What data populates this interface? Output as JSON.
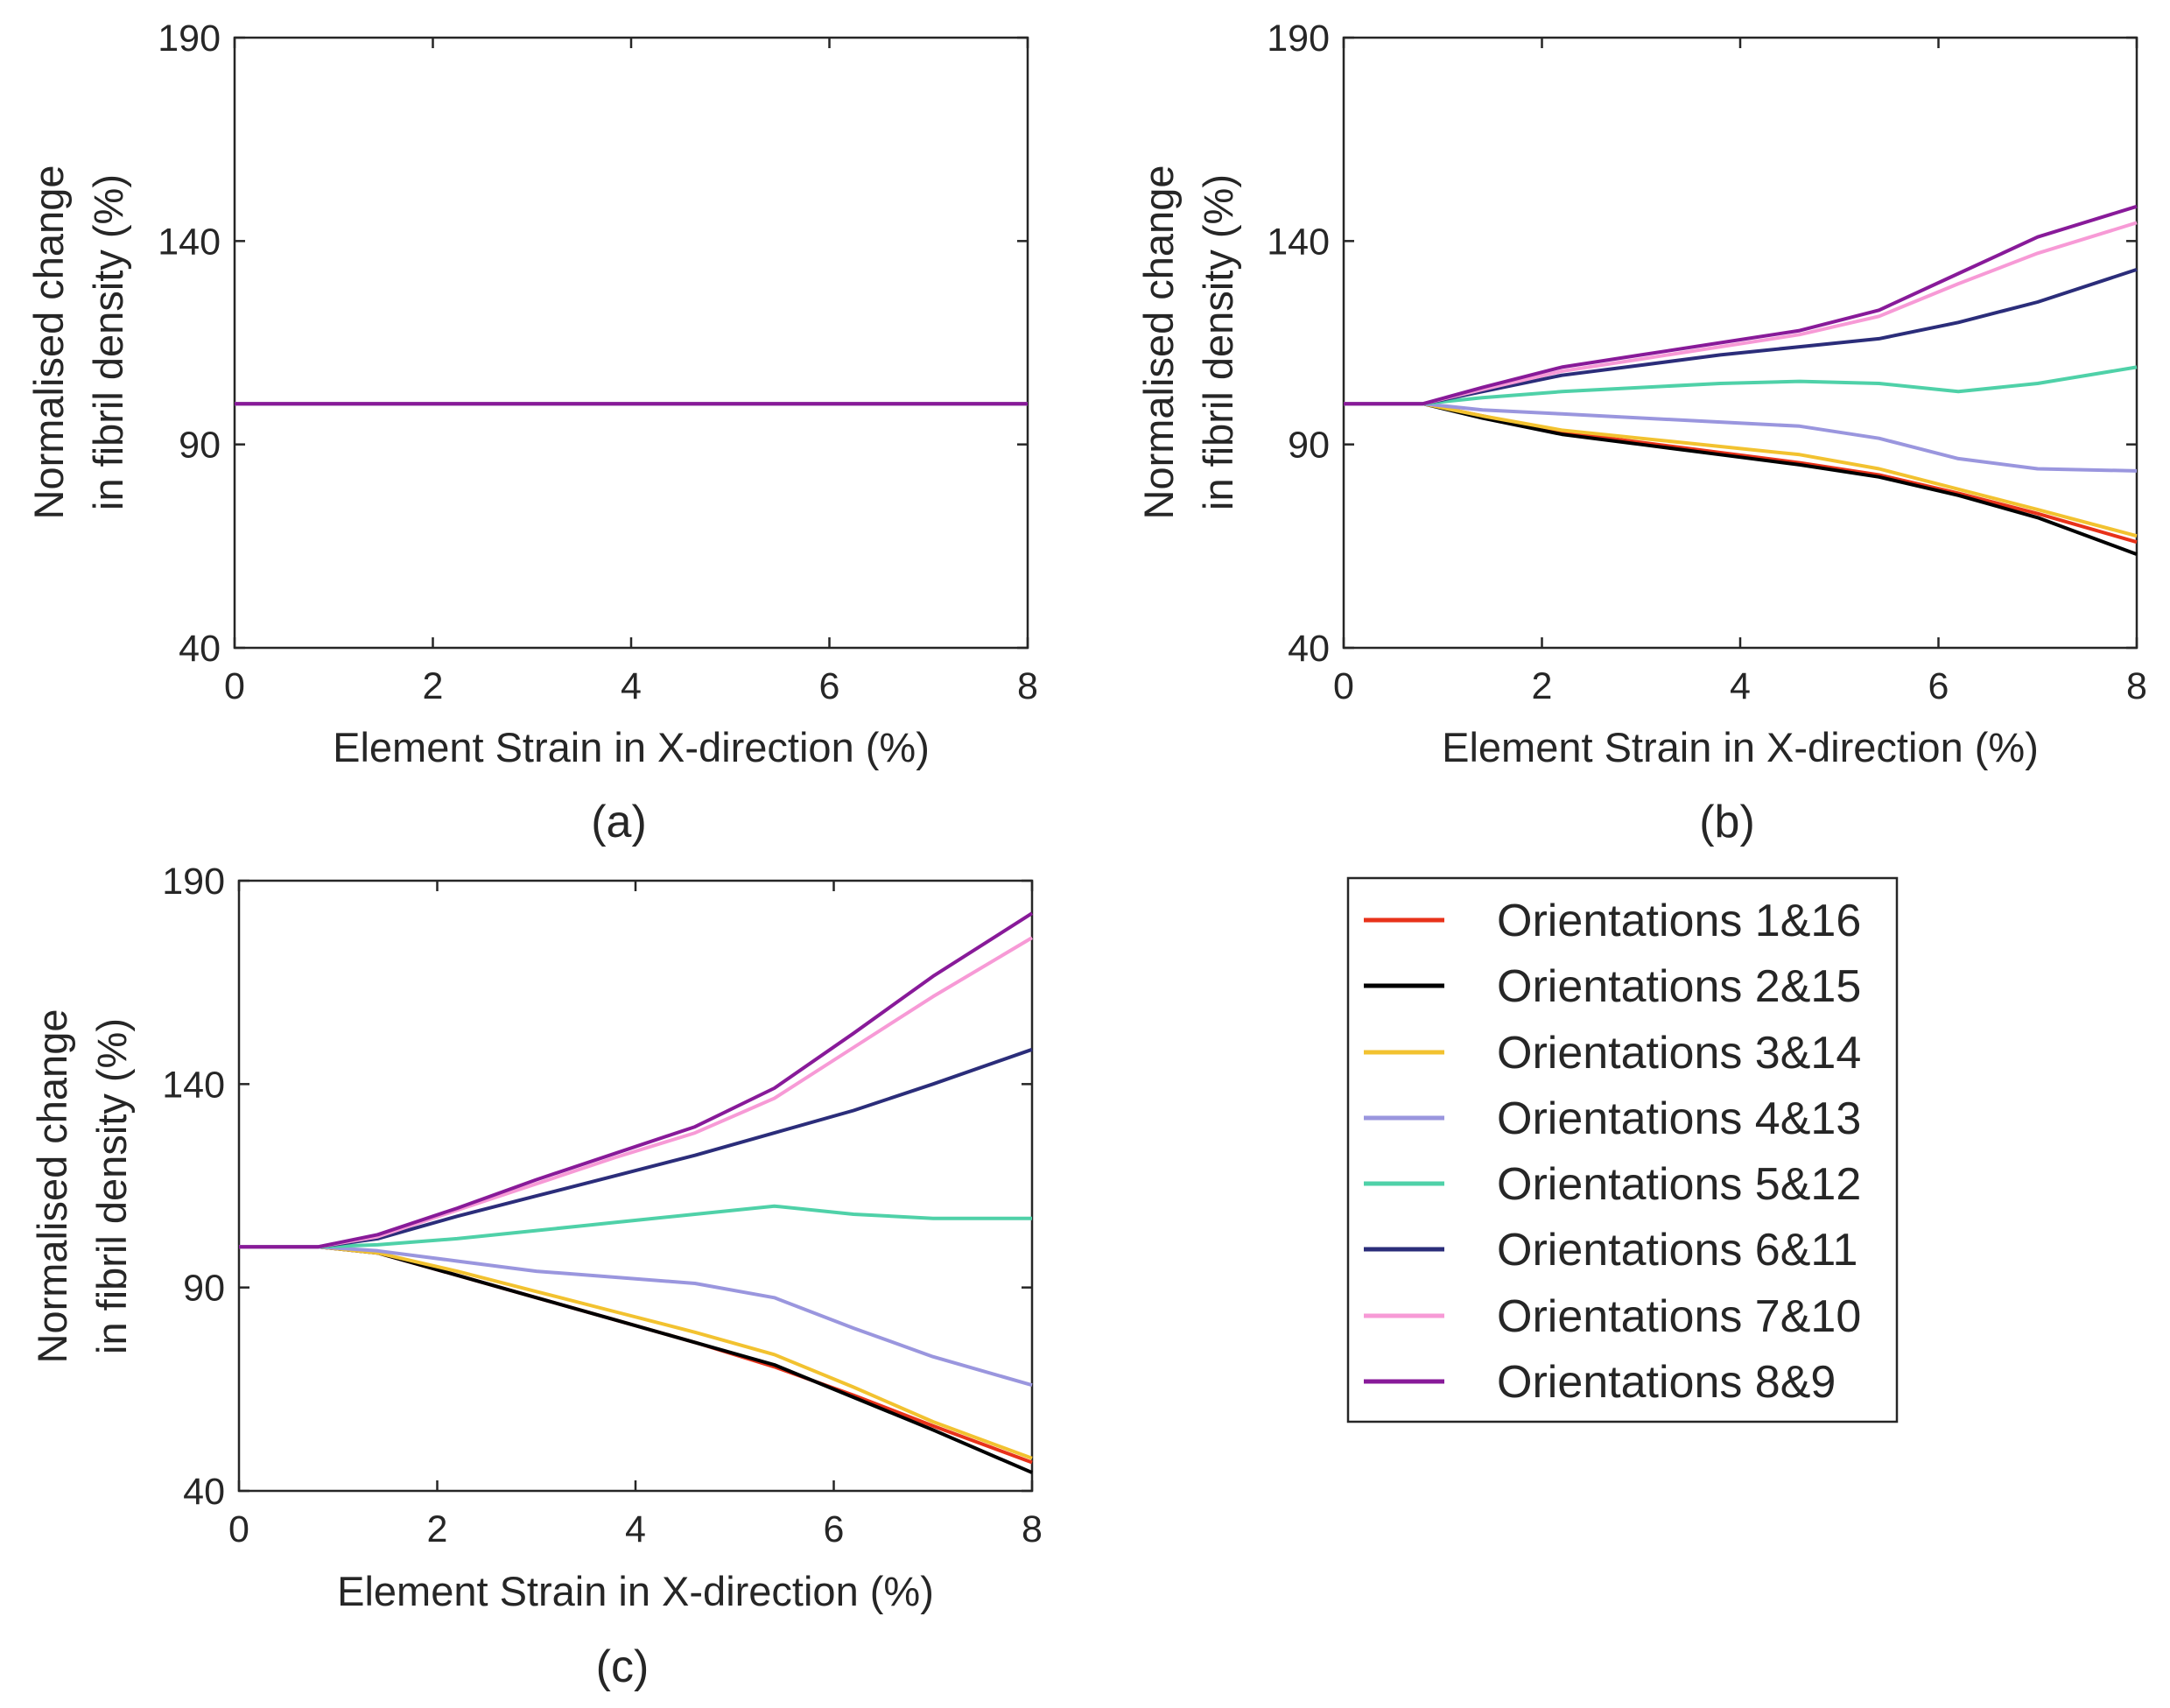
{
  "chart_data": [
    {
      "type": "line",
      "panel": "(a)",
      "caption": "(a)",
      "xlabel": "Element Strain in X-direction (%)",
      "ylabel_line1": "Normalised change",
      "ylabel_line2": "in fibril density (%)",
      "xlim": [
        0,
        8
      ],
      "ylim": [
        40,
        190
      ],
      "xticks": [
        "0",
        "2",
        "4",
        "6",
        "8"
      ],
      "yticks": [
        "40",
        "90",
        "140",
        "190"
      ],
      "x": [
        0,
        0.8,
        1.4,
        2.2,
        3,
        3.8,
        4.6,
        5.4,
        6.2,
        7,
        8
      ],
      "series": [
        {
          "name": "Orientations 1&16",
          "values": [
            100,
            100,
            100,
            100,
            100,
            100,
            100,
            100,
            100,
            100,
            100
          ]
        },
        {
          "name": "Orientations 2&15",
          "values": [
            100,
            100,
            100,
            100,
            100,
            100,
            100,
            100,
            100,
            100,
            100
          ]
        },
        {
          "name": "Orientations 3&14",
          "values": [
            100,
            100,
            100,
            100,
            100,
            100,
            100,
            100,
            100,
            100,
            100
          ]
        },
        {
          "name": "Orientations 4&13",
          "values": [
            100,
            100,
            100,
            100,
            100,
            100,
            100,
            100,
            100,
            100,
            100
          ]
        },
        {
          "name": "Orientations 5&12",
          "values": [
            100,
            100,
            100,
            100,
            100,
            100,
            100,
            100,
            100,
            100,
            100
          ]
        },
        {
          "name": "Orientations 6&11",
          "values": [
            100,
            100,
            100,
            100,
            100,
            100,
            100,
            100,
            100,
            100,
            100
          ]
        },
        {
          "name": "Orientations 7&10",
          "values": [
            100,
            100,
            100,
            100,
            100,
            100,
            100,
            100,
            100,
            100,
            100
          ]
        },
        {
          "name": "Orientations 8&9",
          "values": [
            100,
            100,
            100,
            100,
            100,
            100,
            100,
            100,
            100,
            100,
            100
          ]
        }
      ]
    },
    {
      "type": "line",
      "panel": "(b)",
      "caption": "(b)",
      "xlabel": "Element Strain in X-direction (%)",
      "ylabel_line1": "Normalised change",
      "ylabel_line2": "in fibril density (%)",
      "xlim": [
        0,
        8
      ],
      "ylim": [
        40,
        190
      ],
      "xticks": [
        "0",
        "2",
        "4",
        "6",
        "8"
      ],
      "yticks": [
        "40",
        "90",
        "140",
        "190"
      ],
      "x": [
        0,
        0.8,
        1.4,
        2.2,
        3,
        3.8,
        4.6,
        5.4,
        6.2,
        7,
        8
      ],
      "series": [
        {
          "name": "Orientations 1&16",
          "values": [
            100,
            100,
            97,
            93,
            90.5,
            88,
            85.5,
            82.5,
            78,
            73,
            66
          ]
        },
        {
          "name": "Orientations 2&15",
          "values": [
            100,
            100,
            96.5,
            92.5,
            90,
            87.5,
            85,
            82,
            77.5,
            72,
            63
          ]
        },
        {
          "name": "Orientations 3&14",
          "values": [
            100,
            100,
            97,
            93.5,
            91.5,
            89.5,
            87.5,
            84,
            79,
            74,
            67.5
          ]
        },
        {
          "name": "Orientations 4&13",
          "values": [
            100,
            100,
            98.5,
            97.5,
            96.5,
            95.5,
            94.5,
            91.5,
            86.5,
            84,
            83.5
          ]
        },
        {
          "name": "Orientations 5&12",
          "values": [
            100,
            100,
            101.5,
            103,
            104,
            105,
            105.5,
            105,
            103,
            105,
            109
          ]
        },
        {
          "name": "Orientations 6&11",
          "values": [
            100,
            100,
            103,
            107,
            109.5,
            112,
            114,
            116,
            120,
            125,
            133
          ]
        },
        {
          "name": "Orientations 7&10",
          "values": [
            100,
            100,
            103.5,
            108,
            111,
            114,
            117,
            121.5,
            129.5,
            137,
            144.5
          ]
        },
        {
          "name": "Orientations 8&9",
          "values": [
            100,
            100,
            104,
            109,
            112,
            115,
            118,
            123,
            132,
            141,
            148.5
          ]
        }
      ]
    },
    {
      "type": "line",
      "panel": "(c)",
      "caption": "(c)",
      "xlabel": "Element Strain in X-direction (%)",
      "ylabel_line1": "Normalised change",
      "ylabel_line2": "in fibril density (%)",
      "xlim": [
        0,
        8
      ],
      "ylim": [
        40,
        190
      ],
      "xticks": [
        "0",
        "2",
        "4",
        "6",
        "8"
      ],
      "yticks": [
        "40",
        "90",
        "140",
        "190"
      ],
      "x": [
        0,
        0.8,
        1.4,
        2.2,
        3,
        3.8,
        4.6,
        5.4,
        6.2,
        7,
        8
      ],
      "series": [
        {
          "name": "Orientations 1&16",
          "values": [
            100,
            100,
            98.5,
            93,
            87.5,
            82,
            76.5,
            70.5,
            63.5,
            56,
            47
          ]
        },
        {
          "name": "Orientations 2&15",
          "values": [
            100,
            100,
            98.5,
            93,
            87.5,
            82,
            76.5,
            71,
            63,
            55,
            44.5
          ]
        },
        {
          "name": "Orientations 3&14",
          "values": [
            100,
            100,
            98.5,
            94,
            89,
            84,
            79,
            73.5,
            65.5,
            57,
            48
          ]
        },
        {
          "name": "Orientations 4&13",
          "values": [
            100,
            100,
            99,
            96.5,
            94,
            92.5,
            91,
            87.5,
            80,
            73,
            66
          ]
        },
        {
          "name": "Orientations 5&12",
          "values": [
            100,
            100,
            100.5,
            102,
            104,
            106,
            108,
            110,
            108,
            107,
            107
          ]
        },
        {
          "name": "Orientations 6&11",
          "values": [
            100,
            100,
            102,
            107.5,
            112.5,
            117.5,
            122.5,
            128,
            133.5,
            140,
            148.5
          ]
        },
        {
          "name": "Orientations 7&10",
          "values": [
            100,
            100,
            102.5,
            109,
            115.5,
            122,
            128,
            136.5,
            149,
            161.5,
            176
          ]
        },
        {
          "name": "Orientations 8&9",
          "values": [
            100,
            100,
            103,
            109.5,
            116.5,
            123,
            129.5,
            139,
            152.5,
            166.5,
            182
          ]
        }
      ]
    }
  ],
  "legend": {
    "entries": [
      {
        "label": "Orientations 1&16",
        "color": "#e8321a"
      },
      {
        "label": "Orientations 2&15",
        "color": "#000000"
      },
      {
        "label": "Orientations 3&14",
        "color": "#f2c230"
      },
      {
        "label": "Orientations 4&13",
        "color": "#9a96de"
      },
      {
        "label": "Orientations 5&12",
        "color": "#4fd1a8"
      },
      {
        "label": "Orientations 6&11",
        "color": "#2b2d7a"
      },
      {
        "label": "Orientations 7&10",
        "color": "#f79ad6"
      },
      {
        "label": "Orientations 8&9",
        "color": "#881a99"
      }
    ]
  }
}
